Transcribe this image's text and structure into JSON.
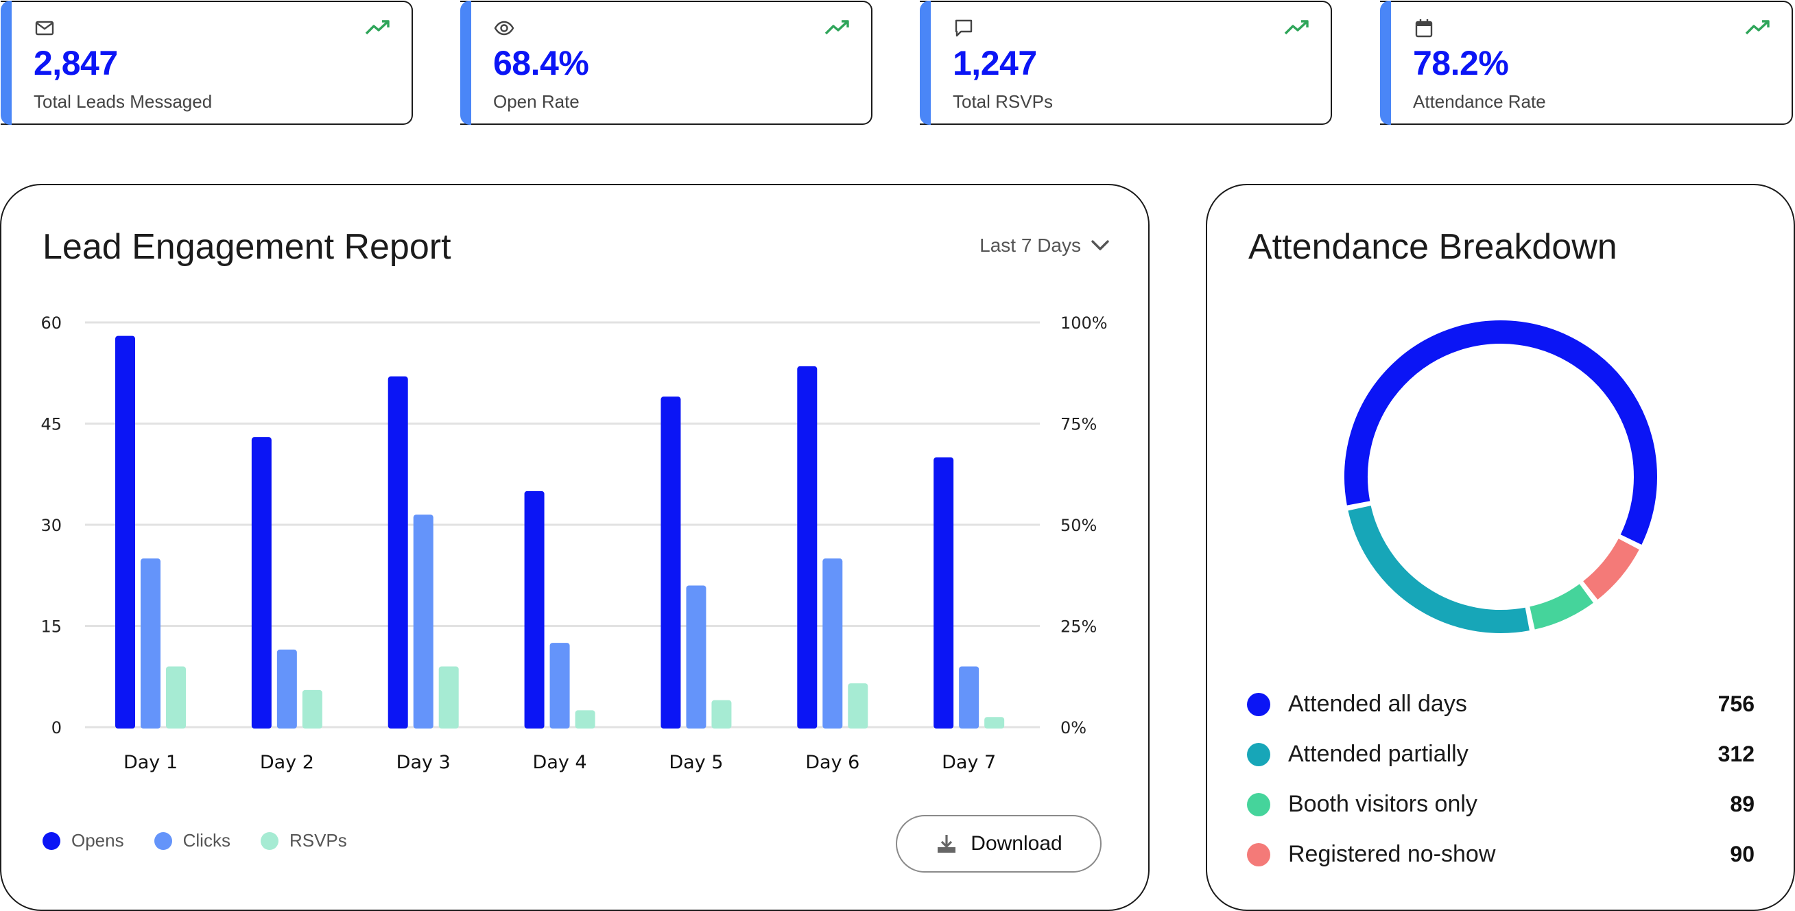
{
  "kpis": [
    {
      "icon": "mail-icon",
      "value": "2,847",
      "label": "Total Leads Messaged"
    },
    {
      "icon": "eye-icon",
      "value": "68.4%",
      "label": "Open Rate"
    },
    {
      "icon": "chat-icon",
      "value": "1,247",
      "label": "Total RSVPs"
    },
    {
      "icon": "calendar-icon",
      "value": "78.2%",
      "label": "Attendance Rate"
    }
  ],
  "colors": {
    "opens": "#0b15f5",
    "clicks": "#6494fa",
    "rsvps": "#a6ebd3",
    "accent": "#4a86f7",
    "trend": "#2fa55a",
    "attended_all": "#0b15f5",
    "attended_partial": "#17a6b8",
    "booth": "#45d49b",
    "no_show": "#f47a78"
  },
  "engagement": {
    "title": "Lead Engagement Report",
    "range_label": "Last 7 Days",
    "download_label": "Download",
    "legend": [
      "Opens",
      "Clicks",
      "RSVPs"
    ]
  },
  "chart_data": [
    {
      "type": "bar",
      "title": "Lead Engagement Report",
      "categories": [
        "Day 1",
        "Day 2",
        "Day 3",
        "Day 4",
        "Day 5",
        "Day 6",
        "Day 7"
      ],
      "series": [
        {
          "name": "Opens",
          "values": [
            58,
            43,
            52,
            35,
            49,
            53.5,
            40
          ]
        },
        {
          "name": "Clicks",
          "values": [
            25,
            11.5,
            31.5,
            12.5,
            21,
            25,
            9
          ]
        },
        {
          "name": "RSVPs",
          "values": [
            9,
            5.5,
            9,
            2.5,
            4,
            6.5,
            1.5
          ]
        }
      ],
      "ylim": [
        0,
        60
      ],
      "yticks": [
        "0",
        "15",
        "30",
        "45",
        "60"
      ],
      "y2ticks": [
        "0%",
        "25%",
        "50%",
        "75%",
        "100%"
      ],
      "grid": true,
      "legend_position": "bottom-left"
    },
    {
      "type": "pie",
      "title": "Attendance Breakdown",
      "categories": [
        "Attended all days",
        "Attended partially",
        "Booth visitors only",
        "Registered no-show"
      ],
      "values": [
        756,
        312,
        89,
        90
      ],
      "display_values": [
        "756",
        "312",
        "89",
        "90"
      ],
      "donut": true
    }
  ],
  "attendance": {
    "title": "Attendance Breakdown"
  }
}
